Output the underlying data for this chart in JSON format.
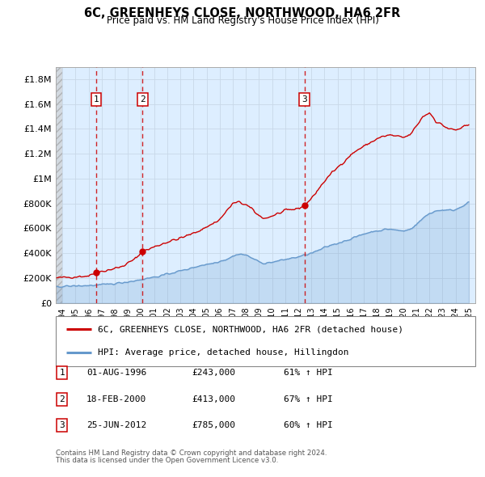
{
  "title": "6C, GREENHEYS CLOSE, NORTHWOOD, HA6 2FR",
  "subtitle": "Price paid vs. HM Land Registry's House Price Index (HPI)",
  "legend_line1": "6C, GREENHEYS CLOSE, NORTHWOOD, HA6 2FR (detached house)",
  "legend_line2": "HPI: Average price, detached house, Hillingdon",
  "footer1": "Contains HM Land Registry data © Crown copyright and database right 2024.",
  "footer2": "This data is licensed under the Open Government Licence v3.0.",
  "transactions": [
    {
      "num": 1,
      "date": "01-AUG-1996",
      "price": 243000,
      "pct": "61% ↑ HPI",
      "x": 1996.583
    },
    {
      "num": 2,
      "date": "18-FEB-2000",
      "price": 413000,
      "pct": "67% ↑ HPI",
      "x": 2000.125
    },
    {
      "num": 3,
      "date": "25-JUN-2012",
      "price": 785000,
      "pct": "60% ↑ HPI",
      "x": 2012.479
    }
  ],
  "ylim": [
    0,
    1900000
  ],
  "xlim": [
    1993.5,
    2025.5
  ],
  "yticks": [
    0,
    200000,
    400000,
    600000,
    800000,
    1000000,
    1200000,
    1400000,
    1600000,
    1800000
  ],
  "ytick_labels": [
    "£0",
    "£200K",
    "£400K",
    "£600K",
    "£800K",
    "£1M",
    "£1.2M",
    "£1.4M",
    "£1.6M",
    "£1.8M"
  ],
  "xticks": [
    1994,
    1995,
    1996,
    1997,
    1998,
    1999,
    2000,
    2001,
    2002,
    2003,
    2004,
    2005,
    2006,
    2007,
    2008,
    2009,
    2010,
    2011,
    2012,
    2013,
    2014,
    2015,
    2016,
    2017,
    2018,
    2019,
    2020,
    2021,
    2022,
    2023,
    2024,
    2025
  ],
  "property_color": "#cc0000",
  "hpi_color": "#6699cc",
  "grid_color": "#c8d8e8",
  "bg_color": "#ddeeff",
  "hatch_bg": "#e8e8e8"
}
